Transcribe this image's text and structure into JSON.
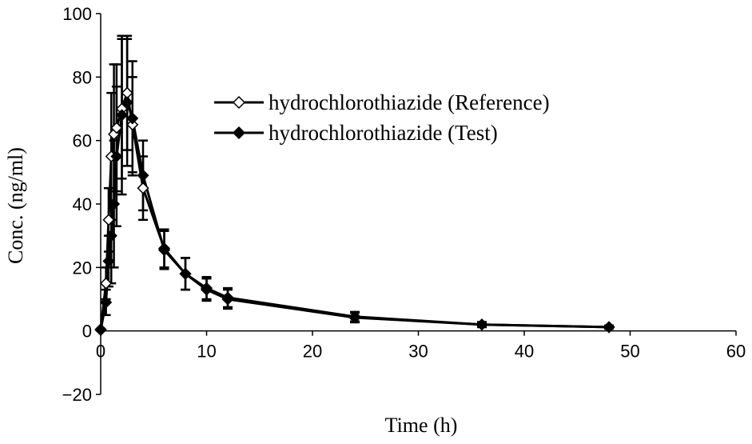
{
  "chart_data": {
    "type": "line",
    "xlabel": "Time (h)",
    "ylabel": "Conc. (ng/ml)",
    "xlim": [
      0,
      60
    ],
    "ylim": [
      -20,
      100
    ],
    "xticks": [
      0,
      10,
      20,
      30,
      40,
      50,
      60
    ],
    "yticks": [
      -20,
      0,
      20,
      40,
      60,
      80,
      100
    ],
    "legend_position": "top-right",
    "grid": false,
    "series": [
      {
        "name": "hydrochlorothiazide (Reference)",
        "marker": "open-diamond",
        "color": "#000000",
        "x": [
          0,
          0.5,
          0.75,
          1,
          1.25,
          1.5,
          2,
          2.5,
          3,
          4,
          6,
          8,
          10,
          12,
          24,
          36,
          48
        ],
        "y": [
          0.5,
          15,
          35,
          55,
          62,
          64,
          70,
          75,
          65,
          45,
          26,
          18,
          13.5,
          10.5,
          4.5,
          2,
          1.2
        ],
        "err": [
          0,
          5,
          10,
          20,
          22,
          20,
          22,
          18,
          15,
          10,
          6,
          5,
          3.5,
          3,
          1.5,
          0.8,
          0.5
        ]
      },
      {
        "name": "hydrochlorothiazide (Test)",
        "marker": "filled-diamond",
        "color": "#000000",
        "x": [
          0,
          0.5,
          0.75,
          1,
          1.25,
          1.5,
          2,
          2.5,
          3,
          4,
          6,
          8,
          10,
          12,
          24,
          36,
          48
        ],
        "y": [
          0.3,
          9,
          22,
          30,
          40,
          55,
          68,
          72,
          67,
          49,
          25.5,
          18,
          13,
          10,
          4.2,
          2,
          1.2
        ],
        "err": [
          0,
          4,
          8,
          15,
          20,
          22,
          25,
          20,
          18,
          11,
          6,
          5,
          3.5,
          3,
          1.5,
          0.8,
          0.5
        ]
      }
    ]
  }
}
